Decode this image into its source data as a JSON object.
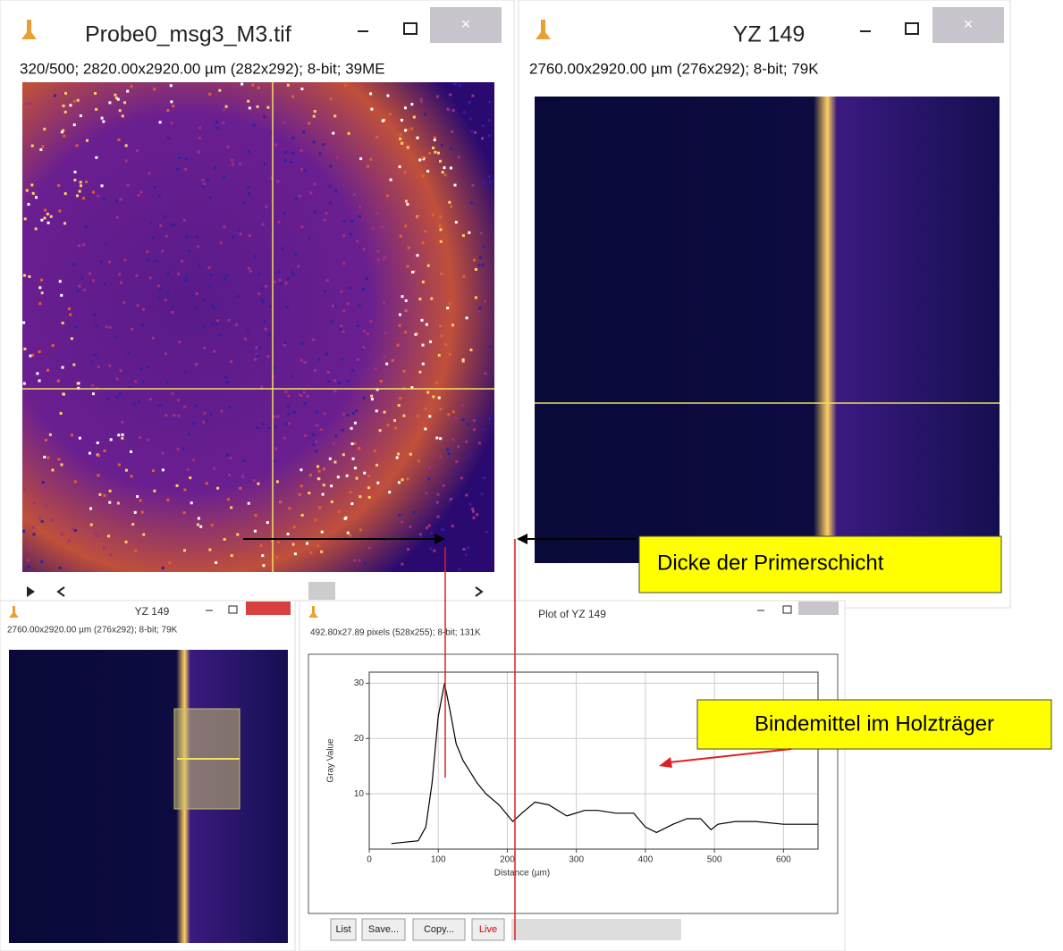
{
  "windows": [
    {
      "title": "Probe0_msg3_M3.tif",
      "info": "320/500; 2820.00x2920.00 µm (282x292); 8-bit; 39ME"
    },
    {
      "title": "YZ 149",
      "info": "2760.00x2920.00 µm (276x292); 8-bit; 79K"
    },
    {
      "title": "YZ 149",
      "info": "2760.00x2920.00 µm (276x292); 8-bit; 79K"
    },
    {
      "title": "Plot of YZ 149",
      "info": "492.80x27.89 pixels (528x255); 8-bit; 131K"
    }
  ],
  "buttons": [
    "List",
    "Save...",
    "Copy...",
    "Live"
  ],
  "annotations": [
    "Dicke der Primerschicht",
    "Bindemittel im Holzträger"
  ],
  "chart_data": {
    "type": "line",
    "x_label": "Distance (µm)",
    "y_label": "Gray Value",
    "x": [
      32,
      71,
      82,
      91,
      100,
      109,
      117,
      126,
      136,
      156,
      169,
      188,
      208,
      221,
      240,
      260,
      286,
      312,
      331,
      357,
      383,
      400,
      416,
      440,
      460,
      480,
      495,
      505,
      530,
      560,
      600,
      640,
      650
    ],
    "series": [
      {
        "name": "YZ 149",
        "color": "#000000",
        "values": [
          1,
          1.5,
          4,
          12,
          24,
          30,
          25,
          19,
          16,
          12,
          10,
          8,
          5,
          6.5,
          8.5,
          8,
          6,
          7,
          7,
          6.5,
          6.5,
          4,
          3,
          4.5,
          5.5,
          5.5,
          3.5,
          4.5,
          5,
          5,
          4.5,
          4.5,
          4.5
        ]
      }
    ],
    "xlim": [
      0,
      650
    ],
    "ylim": [
      0,
      32
    ],
    "xticks": [
      0,
      100,
      200,
      300,
      400,
      500,
      600
    ],
    "yticks": [
      10,
      20,
      30
    ],
    "grid": true
  }
}
